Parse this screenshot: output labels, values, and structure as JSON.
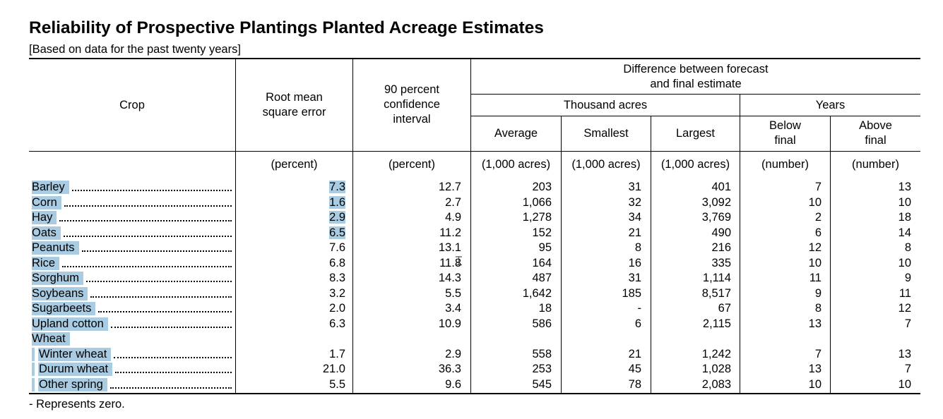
{
  "title": "Reliability of Prospective Plantings Planted Acreage Estimates",
  "subtitle": "[Based on data for the past twenty years]",
  "footnote": "- Represents zero.",
  "headers": {
    "crop": "Crop",
    "rmse": "Root mean\nsquare error",
    "ci": "90 percent\nconfidence\ninterval",
    "difference": "Difference between forecast\nand final estimate",
    "thousand_acres": "Thousand acres",
    "years": "Years",
    "average": "Average",
    "smallest": "Smallest",
    "largest": "Largest",
    "below": "Below\nfinal",
    "above": "Above\nfinal"
  },
  "units": {
    "rmse": "(percent)",
    "ci": "(percent)",
    "average": "(1,000 acres)",
    "smallest": "(1,000 acres)",
    "largest": "(1,000 acres)",
    "below": "(number)",
    "above": "(number)"
  },
  "rows": [
    {
      "crop": "Barley",
      "rmse": "7.3",
      "ci": "12.7",
      "average": "203",
      "smallest": "31",
      "largest": "401",
      "below": "7",
      "above": "13"
    },
    {
      "crop": "Corn",
      "rmse": "1.6",
      "ci": "2.7",
      "average": "1,066",
      "smallest": "32",
      "largest": "3,092",
      "below": "10",
      "above": "10"
    },
    {
      "crop": "Hay",
      "rmse": "2.9",
      "ci": "4.9",
      "average": "1,278",
      "smallest": "34",
      "largest": "3,769",
      "below": "2",
      "above": "18"
    },
    {
      "crop": "Oats",
      "rmse": "6.5",
      "ci": "11.2",
      "average": "152",
      "smallest": "21",
      "largest": "490",
      "below": "6",
      "above": "14"
    },
    {
      "crop": "Peanuts",
      "rmse": "7.6",
      "ci": "13.1",
      "average": "95",
      "smallest": "8",
      "largest": "216",
      "below": "12",
      "above": "8"
    },
    {
      "crop": "Rice",
      "rmse": "6.8",
      "ci": "11.8",
      "average": "164",
      "smallest": "16",
      "largest": "335",
      "below": "10",
      "above": "10"
    },
    {
      "crop": "Sorghum",
      "rmse": "8.3",
      "ci": "14.3",
      "average": "487",
      "smallest": "31",
      "largest": "1,114",
      "below": "11",
      "above": "9"
    },
    {
      "crop": "Soybeans",
      "rmse": "3.2",
      "ci": "5.5",
      "average": "1,642",
      "smallest": "185",
      "largest": "8,517",
      "below": "9",
      "above": "11"
    },
    {
      "crop": "Sugarbeets",
      "rmse": "2.0",
      "ci": "3.4",
      "average": "18",
      "smallest": "-",
      "largest": "67",
      "below": "8",
      "above": "12"
    },
    {
      "crop": "Upland cotton",
      "rmse": "6.3",
      "ci": "10.9",
      "average": "586",
      "smallest": "6",
      "largest": "2,115",
      "below": "13",
      "above": "7"
    },
    {
      "crop": "Wheat",
      "rmse": "",
      "ci": "",
      "average": "",
      "smallest": "",
      "largest": "",
      "below": "",
      "above": ""
    },
    {
      "crop": "Winter wheat",
      "rmse": "1.7",
      "ci": "2.9",
      "average": "558",
      "smallest": "21",
      "largest": "1,242",
      "below": "7",
      "above": "13"
    },
    {
      "crop": "Durum wheat",
      "rmse": "21.0",
      "ci": "36.3",
      "average": "253",
      "smallest": "45",
      "largest": "1,028",
      "below": "13",
      "above": "7"
    },
    {
      "crop": "Other spring",
      "rmse": "5.5",
      "ci": "9.6",
      "average": "545",
      "smallest": "78",
      "largest": "2,083",
      "below": "10",
      "above": "10"
    }
  ]
}
